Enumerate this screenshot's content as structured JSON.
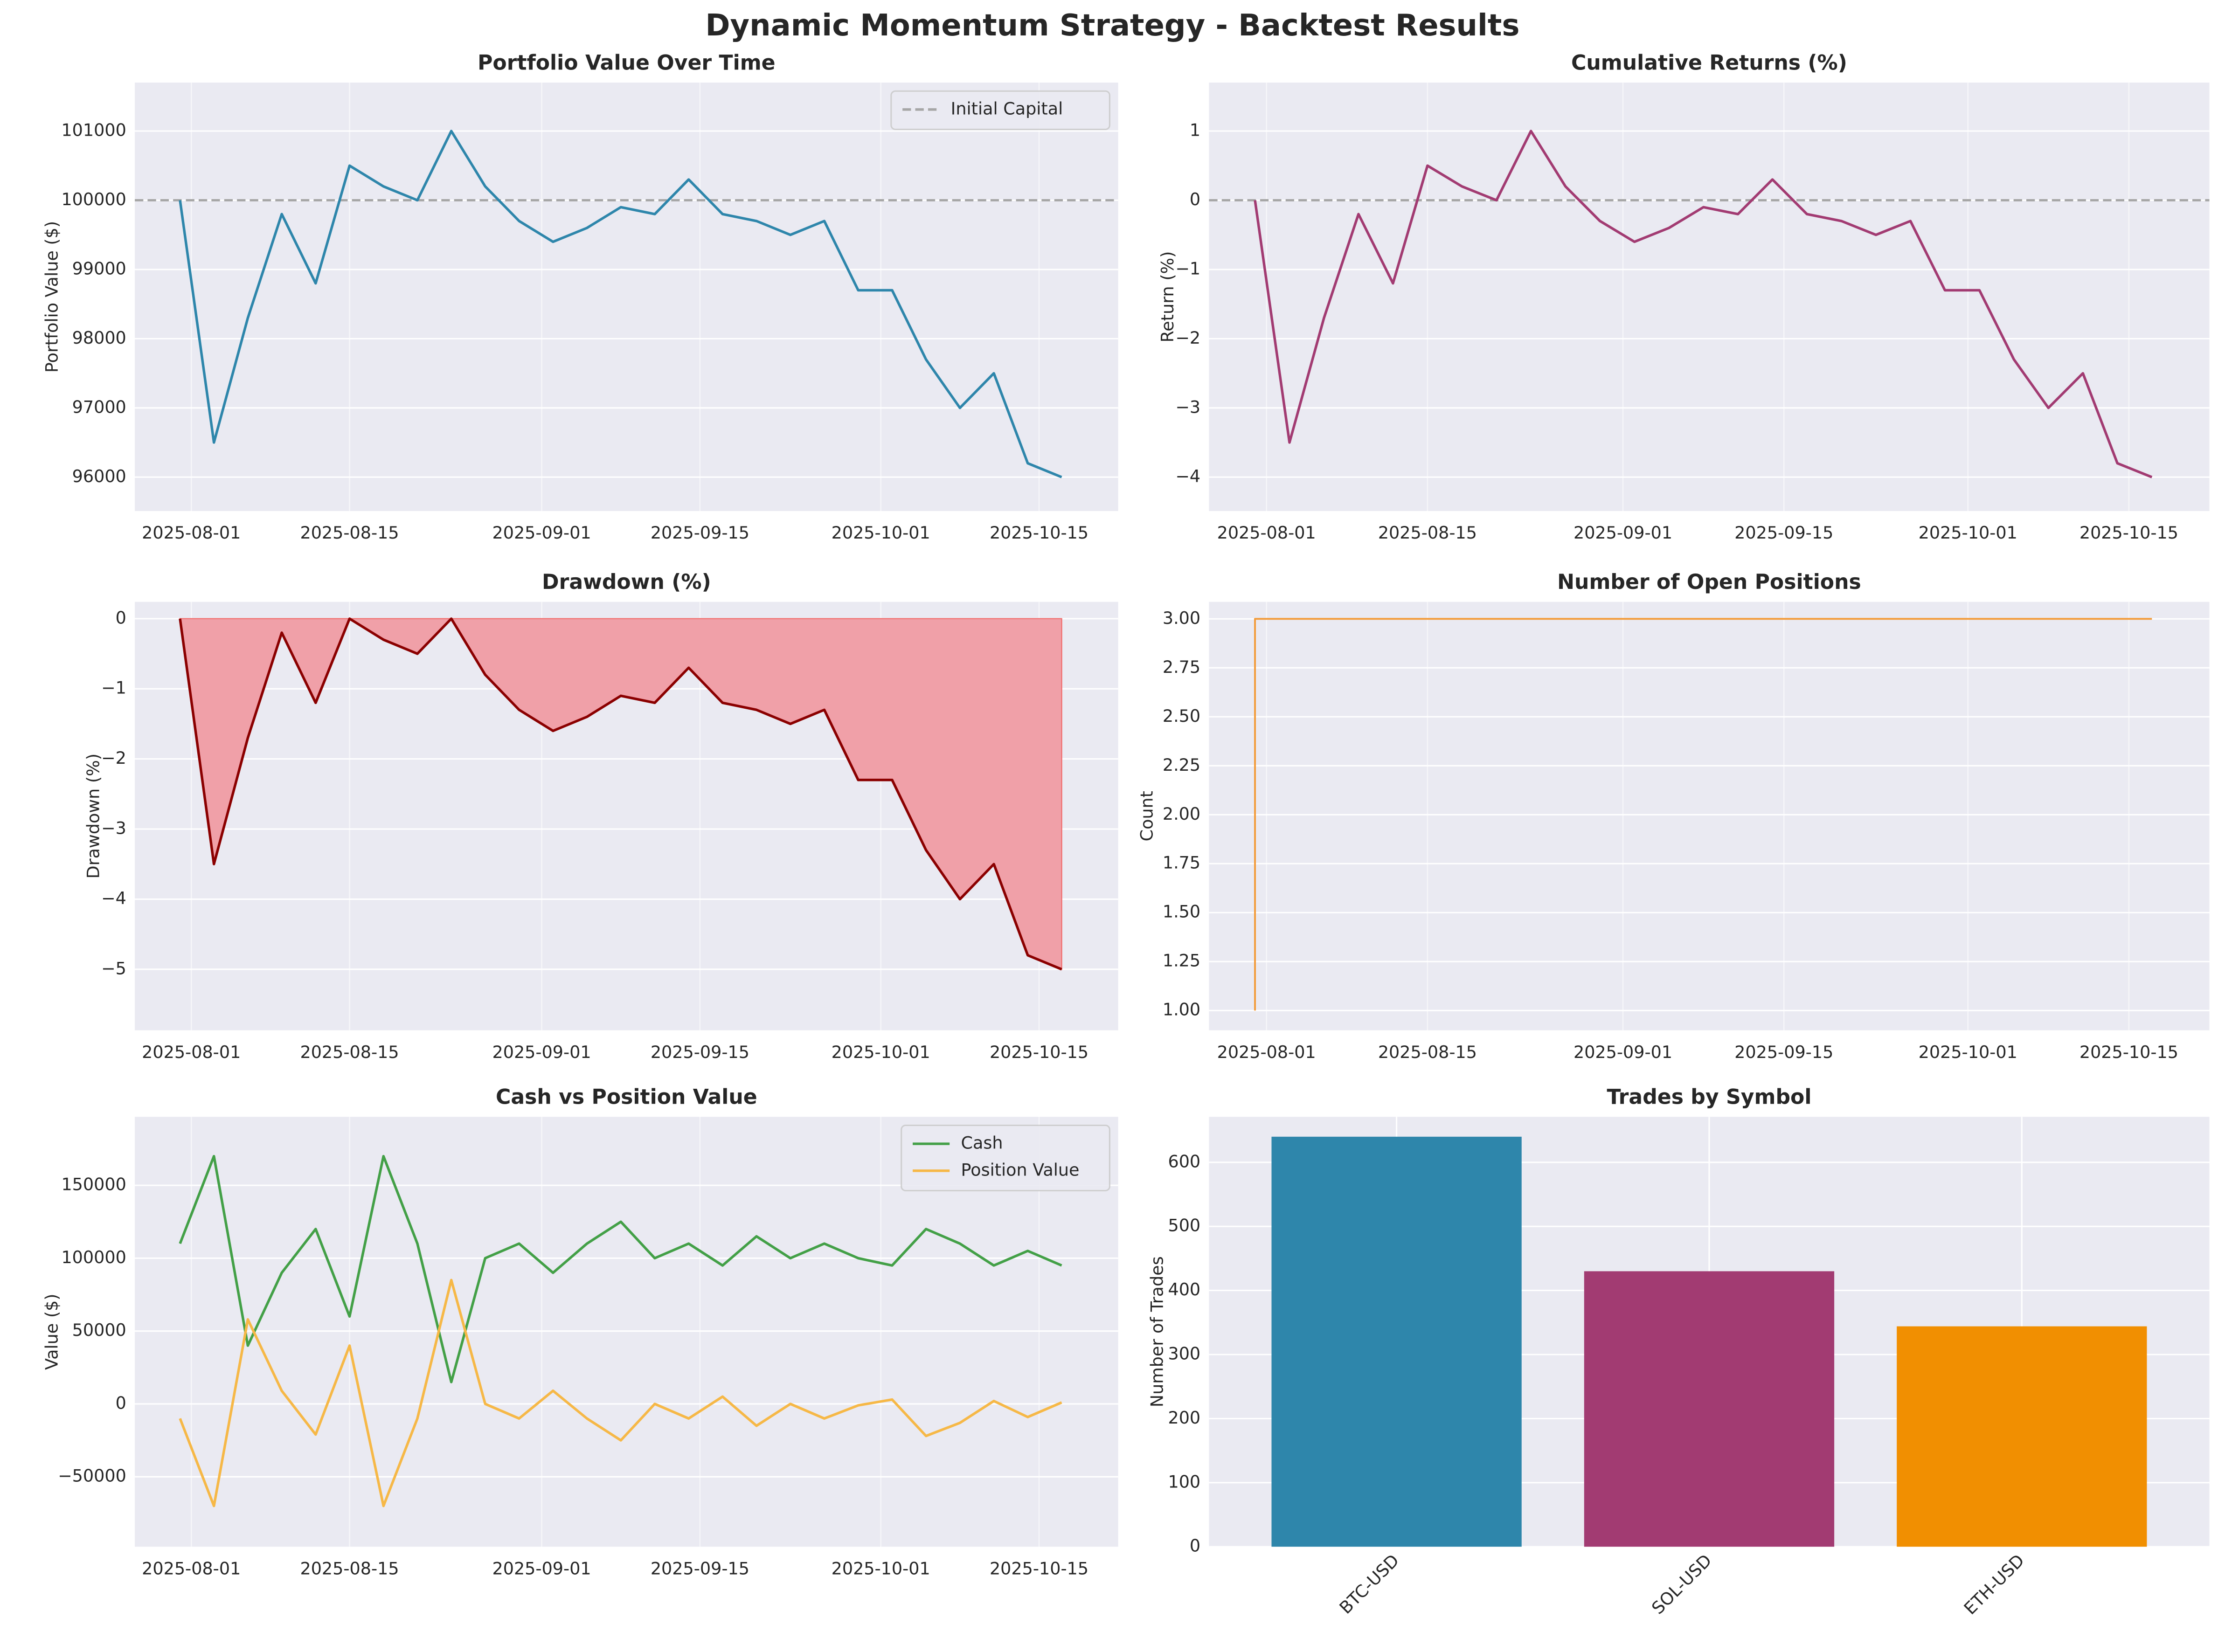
{
  "title": "Dynamic Momentum Strategy - Backtest Results",
  "chart_data": [
    {
      "type": "line",
      "title": "Portfolio Value Over Time",
      "ylabel": "Portfolio Value ($)",
      "x": [
        "2025-07-31",
        "2025-08-03",
        "2025-08-06",
        "2025-08-09",
        "2025-08-12",
        "2025-08-15",
        "2025-08-18",
        "2025-08-21",
        "2025-08-24",
        "2025-08-27",
        "2025-08-30",
        "2025-09-02",
        "2025-09-05",
        "2025-09-08",
        "2025-09-11",
        "2025-09-14",
        "2025-09-17",
        "2025-09-20",
        "2025-09-23",
        "2025-09-26",
        "2025-09-29",
        "2025-10-02",
        "2025-10-05",
        "2025-10-08",
        "2025-10-11",
        "2025-10-14",
        "2025-10-17"
      ],
      "series": [
        {
          "color": "#2e86ab",
          "values": [
            100000,
            96500,
            98300,
            99800,
            98800,
            100500,
            100200,
            100000,
            101000,
            100200,
            99700,
            99400,
            99600,
            99900,
            99800,
            100300,
            99800,
            99700,
            99500,
            99700,
            98700,
            98700,
            97700,
            97000,
            97500,
            96200,
            96000
          ]
        }
      ],
      "hline": {
        "name": "Initial Capital",
        "value": 100000
      },
      "xlim": [
        "2025-07-27",
        "2025-10-22"
      ],
      "xticks": [
        "2025-08-01",
        "2025-08-15",
        "2025-09-01",
        "2025-09-15",
        "2025-10-01",
        "2025-10-15"
      ],
      "ylim": [
        95510,
        101700
      ],
      "yticks": [
        96000,
        97000,
        98000,
        99000,
        100000,
        101000
      ],
      "grid": true,
      "legend": "upper right"
    },
    {
      "type": "line",
      "title": "Cumulative Returns (%)",
      "ylabel": "Return (%)",
      "x": [
        "2025-07-31",
        "2025-08-03",
        "2025-08-06",
        "2025-08-09",
        "2025-08-12",
        "2025-08-15",
        "2025-08-18",
        "2025-08-21",
        "2025-08-24",
        "2025-08-27",
        "2025-08-30",
        "2025-09-02",
        "2025-09-05",
        "2025-09-08",
        "2025-09-11",
        "2025-09-14",
        "2025-09-17",
        "2025-09-20",
        "2025-09-23",
        "2025-09-26",
        "2025-09-29",
        "2025-10-02",
        "2025-10-05",
        "2025-10-08",
        "2025-10-11",
        "2025-10-14",
        "2025-10-17"
      ],
      "series": [
        {
          "color": "#a23b72",
          "values": [
            0,
            -3.5,
            -1.7,
            -0.2,
            -1.2,
            0.5,
            0.2,
            0,
            1.0,
            0.2,
            -0.3,
            -0.6,
            -0.4,
            -0.1,
            -0.2,
            0.3,
            -0.2,
            -0.3,
            -0.5,
            -0.3,
            -1.3,
            -1.3,
            -2.3,
            -3.0,
            -2.5,
            -3.8,
            -4.0
          ]
        }
      ],
      "hline": {
        "value": 0
      },
      "xlim": [
        "2025-07-27",
        "2025-10-22"
      ],
      "xticks": [
        "2025-08-01",
        "2025-08-15",
        "2025-09-01",
        "2025-09-15",
        "2025-10-01",
        "2025-10-15"
      ],
      "ylim": [
        -4.49,
        1.7
      ],
      "yticks": [
        {
          "value": -4,
          "label": "−4"
        },
        {
          "value": -3,
          "label": "−3"
        },
        {
          "value": -2,
          "label": "−2"
        },
        {
          "value": -1,
          "label": "−1"
        },
        0,
        1
      ],
      "grid": true
    },
    {
      "type": "line",
      "title": "Drawdown (%)",
      "ylabel": "Drawdown (%)",
      "x": [
        "2025-07-31",
        "2025-08-03",
        "2025-08-06",
        "2025-08-09",
        "2025-08-12",
        "2025-08-15",
        "2025-08-18",
        "2025-08-21",
        "2025-08-24",
        "2025-08-27",
        "2025-08-30",
        "2025-09-02",
        "2025-09-05",
        "2025-09-08",
        "2025-09-11",
        "2025-09-14",
        "2025-09-17",
        "2025-09-20",
        "2025-09-23",
        "2025-09-26",
        "2025-09-29",
        "2025-10-02",
        "2025-10-05",
        "2025-10-08",
        "2025-10-11",
        "2025-10-14",
        "2025-10-17"
      ],
      "series": [
        {
          "color": "#8b0000",
          "fill_color": "#f0a0a8",
          "values": [
            0,
            -3.5,
            -1.7,
            -0.2,
            -1.2,
            0,
            -0.3,
            -0.5,
            0,
            -0.8,
            -1.3,
            -1.6,
            -1.4,
            -1.1,
            -1.2,
            -0.7,
            -1.2,
            -1.3,
            -1.5,
            -1.3,
            -2.3,
            -2.3,
            -3.3,
            -4.0,
            -3.5,
            -4.8,
            -5.0
          ]
        }
      ],
      "xlim": [
        "2025-07-27",
        "2025-10-22"
      ],
      "xticks": [
        "2025-08-01",
        "2025-08-15",
        "2025-09-01",
        "2025-09-15",
        "2025-10-01",
        "2025-10-15"
      ],
      "ylim": [
        -5.87,
        0.24
      ],
      "yticks": [
        {
          "value": -5,
          "label": "−5"
        },
        {
          "value": -4,
          "label": "−4"
        },
        {
          "value": -3,
          "label": "−3"
        },
        {
          "value": -2,
          "label": "−2"
        },
        {
          "value": -1,
          "label": "−1"
        },
        0
      ],
      "grid": true
    },
    {
      "type": "line",
      "title": "Number of Open Positions",
      "ylabel": "Count",
      "drawstyle": "steps-pre",
      "x": [
        "2025-07-31",
        "2025-08-03",
        "2025-08-06",
        "2025-08-09",
        "2025-08-12",
        "2025-08-15",
        "2025-08-18",
        "2025-08-21",
        "2025-08-24",
        "2025-08-27",
        "2025-08-30",
        "2025-09-02",
        "2025-09-05",
        "2025-09-08",
        "2025-09-11",
        "2025-09-14",
        "2025-09-17",
        "2025-09-20",
        "2025-09-23",
        "2025-09-26",
        "2025-09-29",
        "2025-10-02",
        "2025-10-05",
        "2025-10-08",
        "2025-10-11",
        "2025-10-14",
        "2025-10-17"
      ],
      "series": [
        {
          "color": "#f39c3c",
          "values": [
            1,
            3,
            3,
            3,
            3,
            3,
            3,
            3,
            3,
            3,
            3,
            3,
            3,
            3,
            3,
            3,
            3,
            3,
            3,
            3,
            3,
            3,
            3,
            3,
            3,
            3,
            3
          ]
        }
      ],
      "xlim": [
        "2025-07-27",
        "2025-10-22"
      ],
      "xticks": [
        "2025-08-01",
        "2025-08-15",
        "2025-09-01",
        "2025-09-15",
        "2025-10-01",
        "2025-10-15"
      ],
      "ylim": [
        0.899,
        3.087
      ],
      "yticks": [
        {
          "value": 1,
          "label": "1.00"
        },
        {
          "value": 1.25,
          "label": "1.25"
        },
        {
          "value": 1.5,
          "label": "1.50"
        },
        {
          "value": 1.75,
          "label": "1.75"
        },
        {
          "value": 2,
          "label": "2.00"
        },
        {
          "value": 2.25,
          "label": "2.25"
        },
        {
          "value": 2.5,
          "label": "2.50"
        },
        {
          "value": 2.75,
          "label": "2.75"
        },
        {
          "value": 3,
          "label": "3.00"
        }
      ],
      "grid": true
    },
    {
      "type": "line",
      "title": "Cash vs Position Value",
      "ylabel": "Value ($)",
      "x": [
        "2025-07-31",
        "2025-08-03",
        "2025-08-06",
        "2025-08-09",
        "2025-08-12",
        "2025-08-15",
        "2025-08-18",
        "2025-08-21",
        "2025-08-24",
        "2025-08-27",
        "2025-08-30",
        "2025-09-02",
        "2025-09-05",
        "2025-09-08",
        "2025-09-11",
        "2025-09-14",
        "2025-09-17",
        "2025-09-20",
        "2025-09-23",
        "2025-09-26",
        "2025-09-29",
        "2025-10-02",
        "2025-10-05",
        "2025-10-08",
        "2025-10-11",
        "2025-10-14",
        "2025-10-17"
      ],
      "series": [
        {
          "name": "Cash",
          "color": "#43a047",
          "values": [
            110000,
            170000,
            40000,
            90000,
            120000,
            60000,
            170000,
            110000,
            15000,
            100000,
            110000,
            90000,
            110000,
            125000,
            100000,
            110000,
            95000,
            115000,
            100000,
            110000,
            100000,
            95000,
            120000,
            110000,
            95000,
            105000,
            95000
          ]
        },
        {
          "name": "Position Value",
          "color": "#f6b847",
          "values": [
            -10000,
            -70000,
            58000,
            9000,
            -21000,
            40000,
            -70000,
            -10000,
            85000,
            0,
            -10000,
            9000,
            -10000,
            -25000,
            0,
            -10000,
            5000,
            -15000,
            0,
            -10000,
            -1000,
            3000,
            -22000,
            -13000,
            2000,
            -9000,
            1000
          ]
        }
      ],
      "xlim": [
        "2025-07-27",
        "2025-10-22"
      ],
      "xticks": [
        "2025-08-01",
        "2025-08-15",
        "2025-09-01",
        "2025-09-15",
        "2025-10-01",
        "2025-10-15"
      ],
      "ylim": [
        -98000,
        197000
      ],
      "yticks": [
        {
          "value": -50000,
          "label": "−50000"
        },
        0,
        50000,
        100000,
        150000
      ],
      "grid": true,
      "legend": "upper right"
    },
    {
      "type": "bar",
      "title": "Trades by Symbol",
      "ylabel": "Number of Trades",
      "categories": [
        "BTC-USD",
        "SOL-USD",
        "ETH-USD"
      ],
      "values": [
        640,
        430,
        344
      ],
      "colors": [
        "#2e86ab",
        "#a23b72",
        "#f18f01"
      ],
      "ylim": [
        0,
        671
      ],
      "yticks": [
        0,
        100,
        200,
        300,
        400,
        500,
        600
      ],
      "grid": true
    }
  ]
}
